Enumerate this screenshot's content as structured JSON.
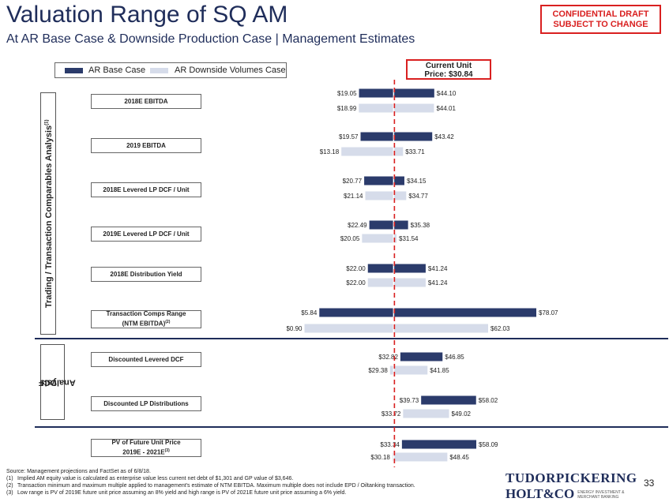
{
  "header": {
    "title": "Valuation Range of SQ AM",
    "subtitle": "At AR Base Case & Downside Production Case | Management Estimates",
    "confidential_line1": "CONFIDENTIAL DRAFT",
    "confidential_line2": "SUBJECT TO CHANGE"
  },
  "legend": {
    "base_label": "AR Base Case",
    "down_label": "AR Downside Volumes Case"
  },
  "current_price": {
    "line1": "Current Unit",
    "line2": "Price: $30.84",
    "value": 30.84
  },
  "sections": {
    "trading_label": "Trading / Transaction Comparables Analysis",
    "trading_sup": "(1)",
    "dcf_label_line1": "DCF",
    "dcf_label_line2": "Analysis"
  },
  "colors": {
    "base": "#2b3b6b",
    "downside": "#d6dcea",
    "accent_red": "#d92020",
    "title_blue": "#1f2d5a"
  },
  "chart_data": {
    "type": "bar",
    "orientation": "horizontal-range",
    "series_names": [
      "AR Base Case",
      "AR Downside Volumes Case"
    ],
    "reference_line": {
      "label": "Current Unit Price: $30.84",
      "value": 30.84
    },
    "rows": [
      {
        "label": "2018E EBITDA",
        "base": {
          "low": 19.05,
          "high": 44.1,
          "low_label": "$19.05",
          "high_label": "$44.10"
        },
        "down": {
          "low": 18.99,
          "high": 44.01,
          "low_label": "$18.99",
          "high_label": "$44.01"
        }
      },
      {
        "label": "2019 EBITDA",
        "base": {
          "low": 19.57,
          "high": 43.42,
          "low_label": "$19.57",
          "high_label": "$43.42"
        },
        "down": {
          "low": 13.18,
          "high": 33.71,
          "low_label": "$13.18",
          "high_label": "$33.71"
        }
      },
      {
        "label": "2018E Levered LP DCF / Unit",
        "base": {
          "low": 20.77,
          "high": 34.15,
          "low_label": "$20.77",
          "high_label": "$34.15"
        },
        "down": {
          "low": 21.14,
          "high": 34.77,
          "low_label": "$21.14",
          "high_label": "$34.77"
        }
      },
      {
        "label": "2019E Levered LP DCF / Unit",
        "base": {
          "low": 22.49,
          "high": 35.38,
          "low_label": "$22.49",
          "high_label": "$35.38"
        },
        "down": {
          "low": 20.05,
          "high": 31.54,
          "low_label": "$20.05",
          "high_label": "$31.54"
        }
      },
      {
        "label": "2018E Distribution Yield",
        "base": {
          "low": 22.0,
          "high": 41.24,
          "low_label": "$22.00",
          "high_label": "$41.24"
        },
        "down": {
          "low": 22.0,
          "high": 41.24,
          "low_label": "$22.00",
          "high_label": "$41.24"
        }
      },
      {
        "label": "Transaction Comps Range",
        "label_line2": "(NTM EBITDA)",
        "label_sup": "(2)",
        "base": {
          "low": 5.84,
          "high": 78.07,
          "low_label": "$5.84",
          "high_label": "$78.07"
        },
        "down": {
          "low": 0.9,
          "high": 62.03,
          "low_label": "$0.90",
          "high_label": "$62.03"
        }
      },
      {
        "label": "Discounted Levered DCF",
        "base": {
          "low": 32.82,
          "high": 46.85,
          "low_label": "$32.82",
          "high_label": "$46.85"
        },
        "down": {
          "low": 29.38,
          "high": 41.85,
          "low_label": "$29.38",
          "high_label": "$41.85"
        }
      },
      {
        "label": "Discounted LP Distributions",
        "base": {
          "low": 39.73,
          "high": 58.02,
          "low_label": "$39.73",
          "high_label": "$58.02"
        },
        "down": {
          "low": 33.72,
          "high": 49.02,
          "low_label": "$33.72",
          "high_label": "$49.02"
        }
      },
      {
        "label": "PV of Future Unit Price",
        "label_line2": "2019E - 2021E",
        "label_sup": "(3)",
        "base": {
          "low": 33.34,
          "high": 58.09,
          "low_label": "$33.34",
          "high_label": "$58.09"
        },
        "down": {
          "low": 30.18,
          "high": 48.45,
          "low_label": "$30.18",
          "high_label": "$48.45"
        }
      }
    ]
  },
  "footer": {
    "source": "Source: Management projections and FactSet as of 6/8/18.",
    "note1_num": "(1)",
    "note1": "Implied AM equity value is calculated as enterprise value less current net debt of $1,301 and GP value of $3,646.",
    "note2_num": "(2)",
    "note2": "Transaction minimum and maximum multiple applied to management's estimate of NTM EBITDA. Maximum multiple does not include EPD / Oiltanking transaction.",
    "note3_num": "(3)",
    "note3": "Low range is PV of 2019E future unit price assuming an 8% yield and high range is PV of 2021E future unit price assuming a 6% yield."
  },
  "logo": {
    "line1": "TUDORPICKERING",
    "line2": "HOLT&CO",
    "tagline": "ENERGY INVESTMENT & MERCHANT BANKING"
  },
  "page_number": "33"
}
